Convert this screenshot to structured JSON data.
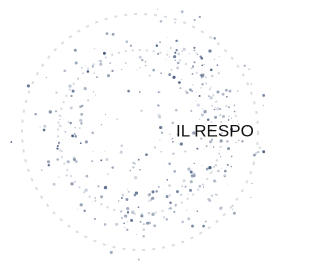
{
  "stamp_text": "IL RESPO"
}
